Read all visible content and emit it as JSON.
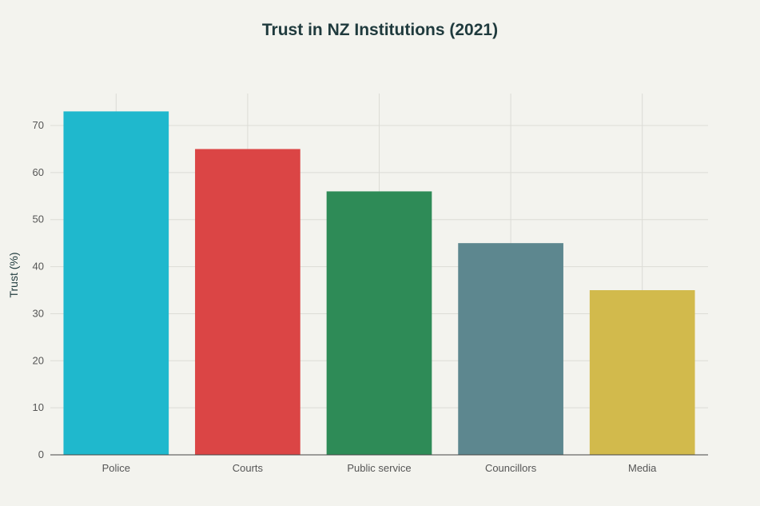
{
  "chart_data": {
    "type": "bar",
    "title": "Trust in NZ Institutions (2021)",
    "xlabel": "",
    "ylabel": "Trust (%)",
    "categories": [
      "Police",
      "Courts",
      "Public service",
      "Councillors",
      "Media"
    ],
    "values": [
      73,
      65,
      56,
      45,
      35
    ],
    "colors": [
      "#1fb8cd",
      "#db4545",
      "#2e8b57",
      "#5d878f",
      "#d2ba4c"
    ],
    "ylim": [
      0,
      76.8
    ],
    "yticks": [
      0,
      10,
      20,
      30,
      40,
      50,
      60,
      70
    ],
    "grid": true,
    "legend": "none"
  }
}
